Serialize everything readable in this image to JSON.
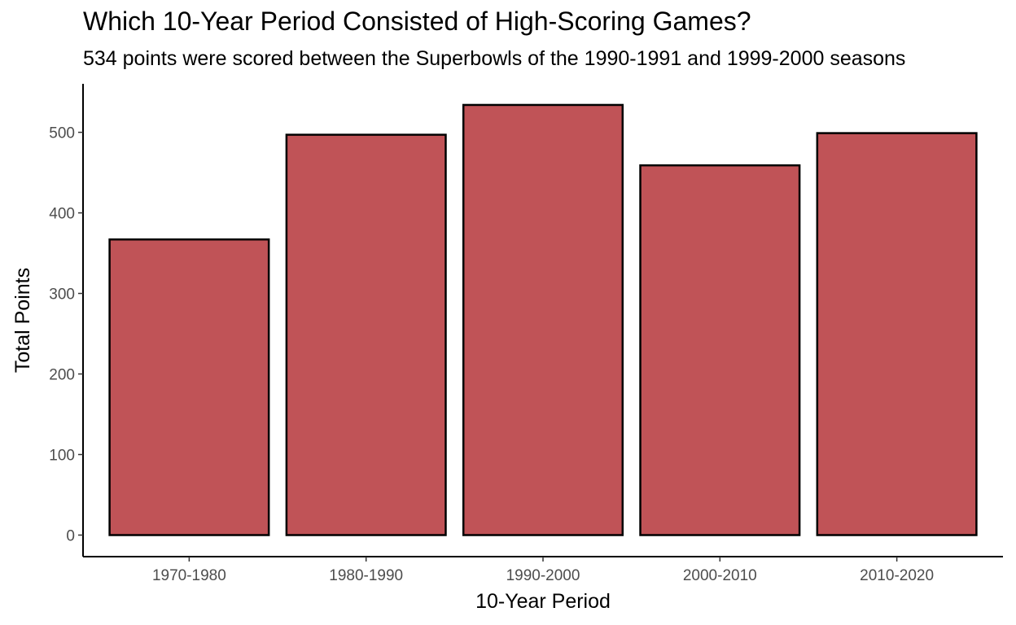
{
  "chart_data": {
    "type": "bar",
    "title": "Which 10-Year Period Consisted of High-Scoring Games?",
    "subtitle": "534 points were scored between the Superbowls of the 1990-1991 and 1999-2000 seasons",
    "xlabel": "10-Year Period",
    "ylabel": "Total Points",
    "categories": [
      "1970-1980",
      "1980-1990",
      "1990-2000",
      "2000-2010",
      "2010-2020"
    ],
    "values": [
      367,
      497,
      534,
      459,
      499
    ],
    "ylim": [
      0,
      550
    ],
    "yticks": [
      0,
      100,
      200,
      300,
      400,
      500
    ],
    "grid": false,
    "legend": "none",
    "bar_fill": "#c05357",
    "bar_outline": "#000000"
  }
}
